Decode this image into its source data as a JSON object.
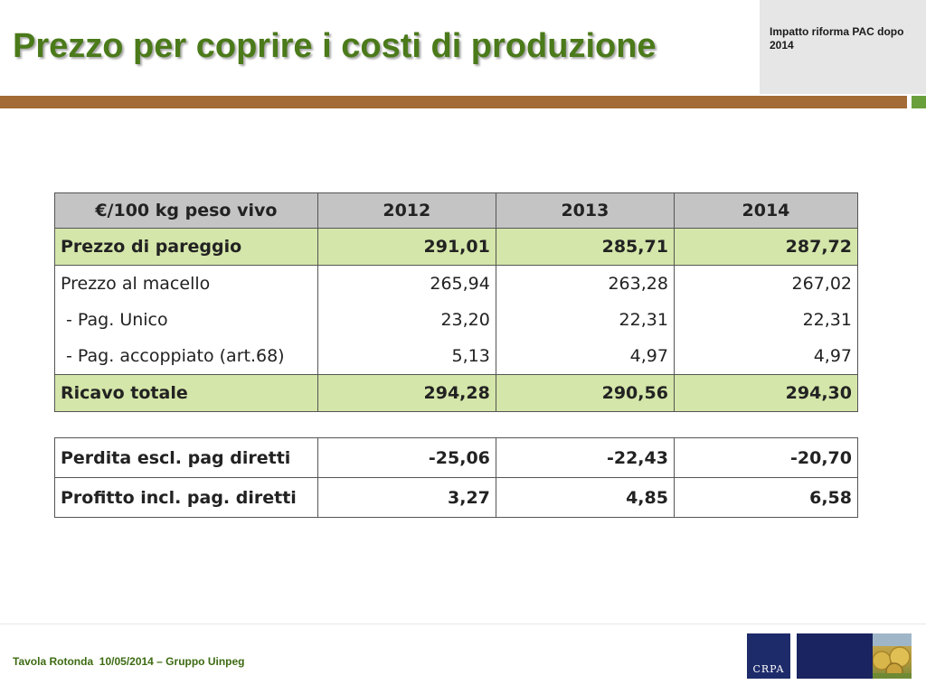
{
  "header": {
    "title": "Prezzo per coprire i costi di produzione",
    "corner_note": "Impatto riforma PAC dopo 2014"
  },
  "table_main": {
    "header": [
      "€/100 kg peso vivo",
      "2012",
      "2013",
      "2014"
    ],
    "rows": [
      {
        "label": "Prezzo di pareggio",
        "values": [
          "291,01",
          "285,71",
          "287,72"
        ]
      },
      {
        "label": "Prezzo al macello",
        "values": [
          "265,94",
          "263,28",
          "267,02"
        ]
      },
      {
        "label": " - Pag. Unico",
        "values": [
          "23,20",
          "22,31",
          "22,31"
        ]
      },
      {
        "label": " - Pag. accoppiato (art.68)",
        "values": [
          "5,13",
          "4,97",
          "4,97"
        ]
      },
      {
        "label": "Ricavo totale",
        "values": [
          "294,28",
          "290,56",
          "294,30"
        ]
      }
    ]
  },
  "table_second": {
    "rows": [
      {
        "label": "Perdita escl. pag diretti",
        "values": [
          "-25,06",
          "-22,43",
          "-20,70"
        ]
      },
      {
        "label": "Profitto incl. pag. diretti",
        "values": [
          "3,27",
          "4,85",
          "6,58"
        ]
      }
    ]
  },
  "footer": {
    "text": "Tavola Rotonda  10/05/2014 – Gruppo Uinpeg",
    "logo_text": "CRPA"
  },
  "colors": {
    "title_green": "#4b7a1a",
    "brown_bar": "#a36b35",
    "highlight_green": "#d4e6a9",
    "header_gray": "#c4c4c4",
    "logo_navy": "#1e2b6a"
  }
}
